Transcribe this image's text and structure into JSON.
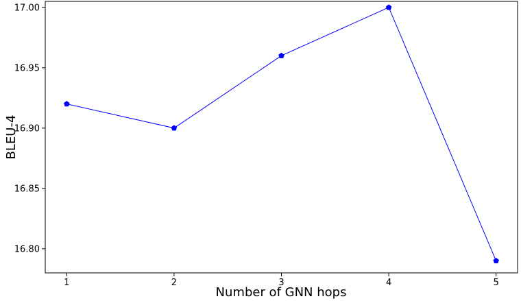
{
  "chart_data": {
    "type": "line",
    "title": "",
    "xlabel": "Number of GNN hops",
    "ylabel": "BLEU-4",
    "x": [
      1,
      2,
      3,
      4,
      5
    ],
    "x_tick_labels": [
      "1",
      "2",
      "3",
      "4",
      "5"
    ],
    "y_ticks": [
      16.8,
      16.85,
      16.9,
      16.95,
      17.0
    ],
    "y_tick_labels": [
      "16.80",
      "16.85",
      "16.90",
      "16.95",
      "17.00"
    ],
    "xlim": [
      0.8,
      5.2
    ],
    "ylim": [
      16.78,
      17.005
    ],
    "grid": false,
    "series": [
      {
        "values": [
          16.92,
          16.9,
          16.96,
          17.0,
          16.79
        ],
        "color": "#0000ff",
        "marker": "pentagon"
      }
    ]
  }
}
